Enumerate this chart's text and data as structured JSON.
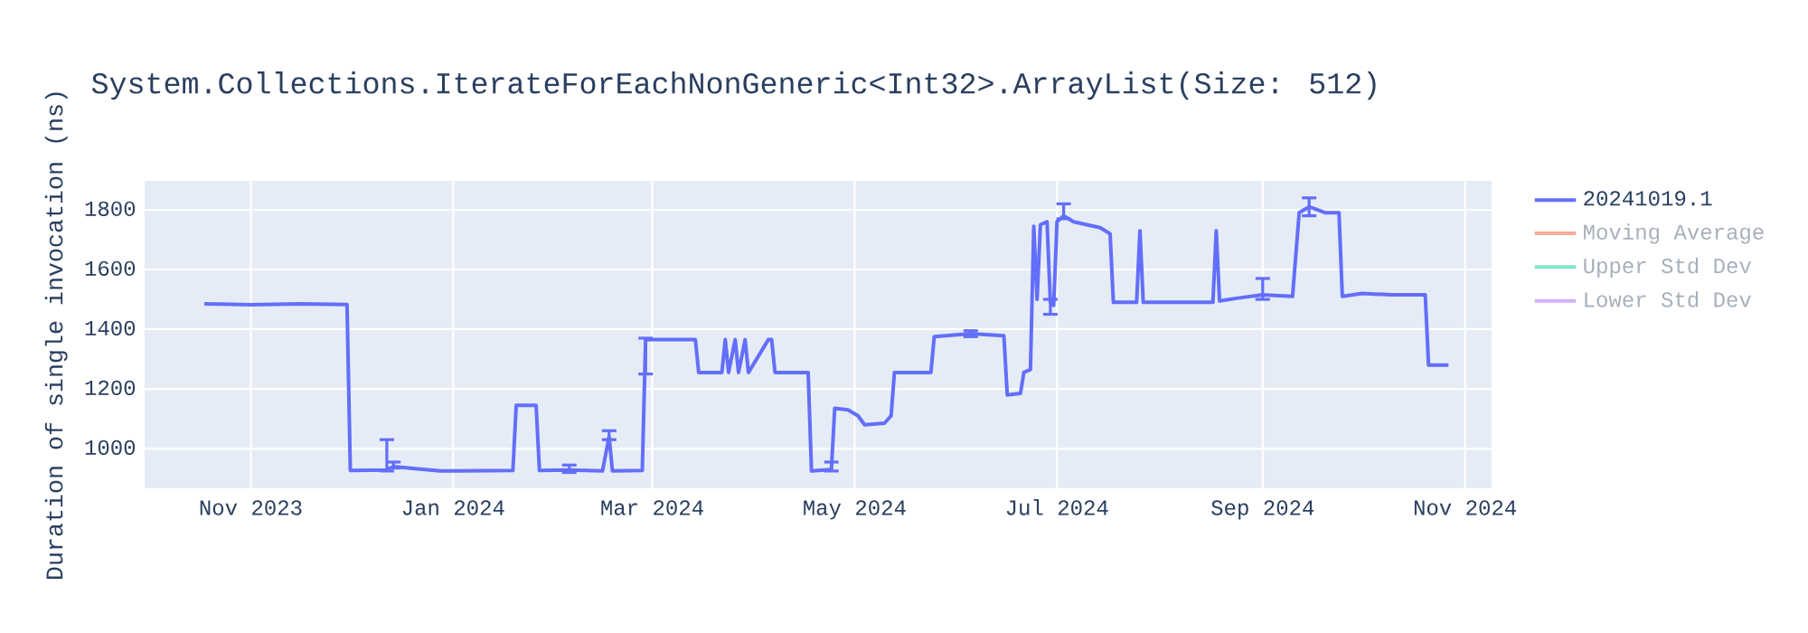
{
  "chart_data": {
    "type": "line",
    "title": "System.Collections.IterateForEachNonGeneric<Int32>.ArrayList(Size: 512)",
    "ylabel": "Duration of single invocation (ns)",
    "xlim": [
      "2023-09-30",
      "2024-11-09"
    ],
    "ylim": [
      867,
      1897
    ],
    "xticks": [
      {
        "value": "2023-11-01",
        "label": "Nov 2023"
      },
      {
        "value": "2024-01-01",
        "label": "Jan 2024"
      },
      {
        "value": "2024-03-01",
        "label": "Mar 2024"
      },
      {
        "value": "2024-05-01",
        "label": "May 2024"
      },
      {
        "value": "2024-07-01",
        "label": "Jul 2024"
      },
      {
        "value": "2024-09-01",
        "label": "Sep 2024"
      },
      {
        "value": "2024-11-01",
        "label": "Nov 2024"
      }
    ],
    "yticks": [
      1000,
      1200,
      1400,
      1600,
      1800
    ],
    "grid": true,
    "legend": "top right",
    "series": [
      {
        "name": "20241019.1",
        "color": "#636efa",
        "x": [
          "2023-10-18",
          "2023-11-01",
          "2023-11-16",
          "2023-11-30",
          "2023-12-01",
          "2023-12-12",
          "2023-12-14",
          "2023-12-28",
          "2024-01-19",
          "2024-01-20",
          "2024-01-26",
          "2024-01-27",
          "2024-02-05",
          "2024-02-15",
          "2024-02-17",
          "2024-02-18",
          "2024-02-27",
          "2024-02-28",
          "2024-03-14",
          "2024-03-15",
          "2024-03-22",
          "2024-03-23",
          "2024-03-24",
          "2024-03-26",
          "2024-03-27",
          "2024-03-29",
          "2024-03-30",
          "2024-04-05",
          "2024-04-06",
          "2024-04-07",
          "2024-04-17",
          "2024-04-18",
          "2024-04-24",
          "2024-04-25",
          "2024-04-29",
          "2024-05-02",
          "2024-05-04",
          "2024-05-10",
          "2024-05-12",
          "2024-05-13",
          "2024-05-24",
          "2024-05-25",
          "2024-06-05",
          "2024-06-15",
          "2024-06-16",
          "2024-06-20",
          "2024-06-21",
          "2024-06-23",
          "2024-06-24",
          "2024-06-25",
          "2024-06-26",
          "2024-06-28",
          "2024-06-29",
          "2024-06-30",
          "2024-07-01",
          "2024-07-03",
          "2024-07-06",
          "2024-07-10",
          "2024-07-14",
          "2024-07-17",
          "2024-07-18",
          "2024-07-25",
          "2024-07-26",
          "2024-07-27",
          "2024-08-15",
          "2024-08-17",
          "2024-08-18",
          "2024-08-19",
          "2024-08-25",
          "2024-09-01",
          "2024-09-10",
          "2024-09-12",
          "2024-09-15",
          "2024-09-20",
          "2024-09-24",
          "2024-09-25",
          "2024-10-01",
          "2024-10-10",
          "2024-10-20",
          "2024-10-21",
          "2024-10-27"
        ],
        "values": [
          1485,
          1482,
          1485,
          1483,
          927,
          928,
          940,
          925,
          927,
          1145,
          1145,
          927,
          928,
          925,
          1040,
          925,
          927,
          1365,
          1365,
          1255,
          1255,
          1365,
          1255,
          1365,
          1255,
          1365,
          1255,
          1365,
          1365,
          1255,
          1255,
          925,
          930,
          1135,
          1130,
          1110,
          1080,
          1085,
          1110,
          1255,
          1255,
          1375,
          1385,
          1378,
          1180,
          1185,
          1255,
          1265,
          1745,
          1500,
          1750,
          1760,
          1490,
          1480,
          1760,
          1780,
          1760,
          1750,
          1740,
          1720,
          1490,
          1490,
          1730,
          1490,
          1490,
          1490,
          1730,
          1495,
          1505,
          1515,
          1510,
          1790,
          1810,
          1790,
          1790,
          1510,
          1520,
          1515,
          1515,
          1280,
          1280
        ],
        "errors": [
          null,
          null,
          null,
          null,
          null,
          [
            925,
            1030
          ],
          [
            935,
            955
          ],
          null,
          null,
          null,
          null,
          null,
          [
            920,
            945
          ],
          null,
          [
            1030,
            1060
          ],
          null,
          null,
          [
            1250,
            1370
          ],
          null,
          null,
          null,
          null,
          null,
          null,
          null,
          null,
          null,
          null,
          null,
          null,
          null,
          null,
          [
            925,
            955
          ],
          null,
          null,
          null,
          null,
          null,
          null,
          null,
          null,
          null,
          [
            1375,
            1395
          ],
          null,
          null,
          null,
          null,
          null,
          null,
          null,
          null,
          null,
          [
            1450,
            1500
          ],
          null,
          null,
          [
            1770,
            1820
          ],
          null,
          null,
          null,
          null,
          null,
          null,
          null,
          null,
          null,
          null,
          null,
          null,
          null,
          [
            1500,
            1570
          ],
          null,
          null,
          [
            1780,
            1840
          ],
          null,
          null,
          null,
          null,
          null,
          null,
          null,
          null
        ]
      },
      {
        "name": "Moving Average",
        "color": "#f7aa9d"
      },
      {
        "name": "Upper Std Dev",
        "color": "#7fe5ca"
      },
      {
        "name": "Lower Std Dev",
        "color": "#d5b1fc"
      }
    ]
  }
}
